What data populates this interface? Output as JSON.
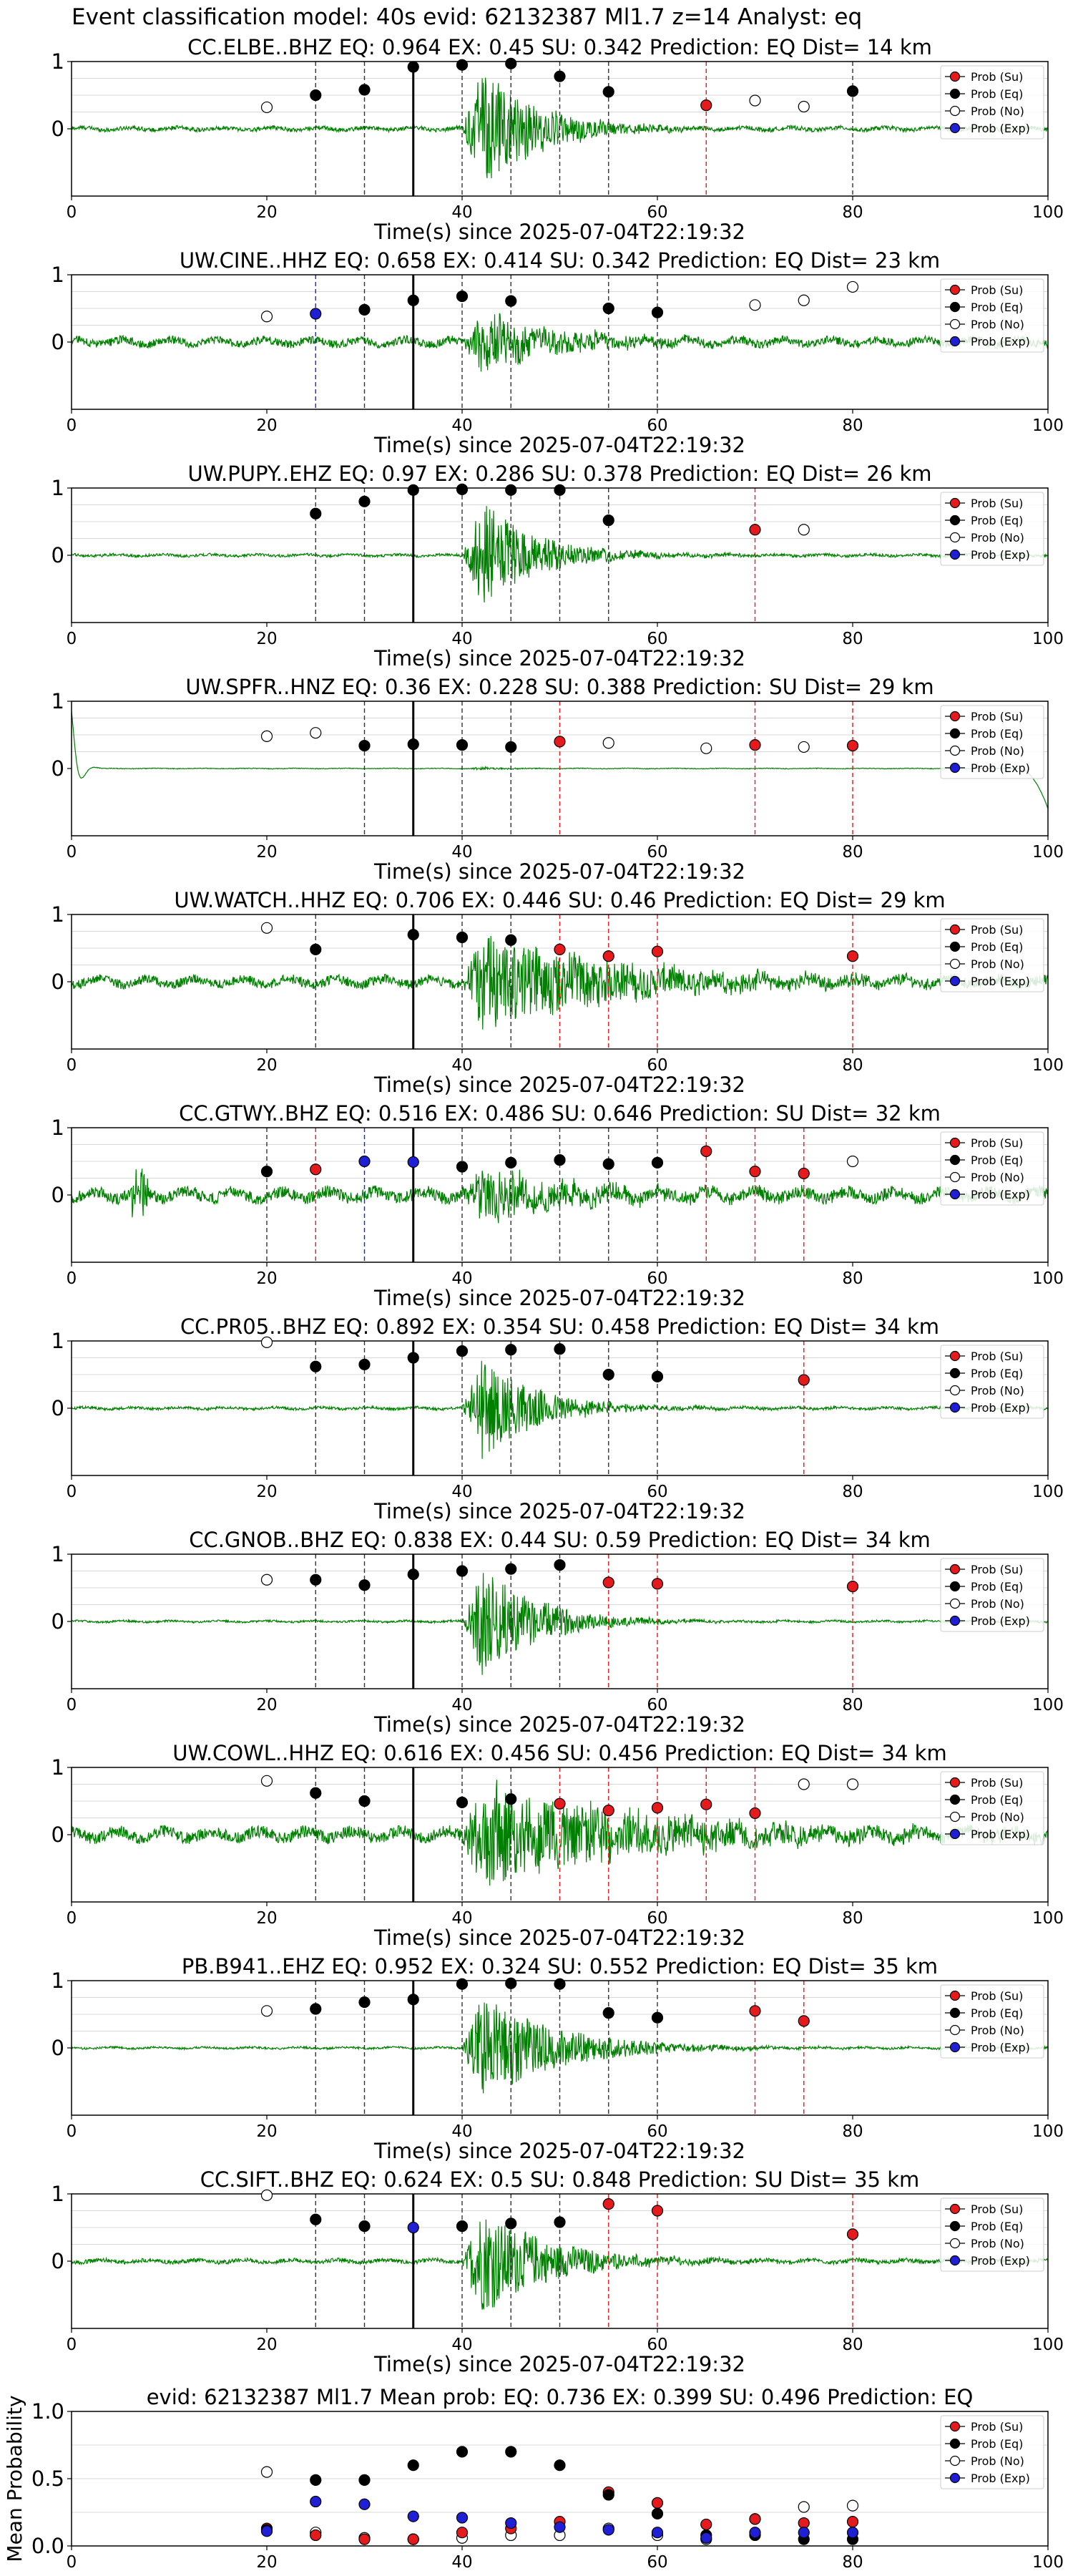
{
  "figure": {
    "suptitle": "Event classification model: 40s evid: 62132387 Ml1.7 z=14 Analyst: eq",
    "legend": [
      "Prob (Su)",
      "Prob (Eq)",
      "Prob (No)",
      "Prob (Exp)"
    ],
    "xlabel": "Time(s) since 2025-07-04T22:19:32",
    "colors": {
      "su": "#e41a1c",
      "eq": "#000000",
      "no": "#ffffff",
      "exp": "#1f1fd6",
      "wave": "#008000"
    }
  },
  "chart_data": [
    {
      "type": "scatter",
      "title": "CC.ELBE..BHZ   EQ: 0.964  EX: 0.45  SU: 0.342   Prediction: EQ    Dist= 14 km",
      "xlim": [
        0,
        100
      ],
      "ylim": [
        -1,
        1
      ],
      "xticks": [
        0,
        20,
        40,
        60,
        80,
        100
      ],
      "yticks": [
        0,
        1
      ],
      "pick": 35,
      "event_start": 40,
      "event_end": 45,
      "noise_amp": 0.03,
      "event_amp": 0.9,
      "coda": 6,
      "series": {
        "su": [
          [
            65,
            0.35
          ]
        ],
        "eq": [
          [
            25,
            0.5
          ],
          [
            30,
            0.58
          ],
          [
            35,
            0.92
          ],
          [
            40,
            0.95
          ],
          [
            45,
            0.97
          ],
          [
            50,
            0.78
          ],
          [
            55,
            0.55
          ],
          [
            80,
            0.56
          ]
        ],
        "no": [
          [
            20,
            0.32
          ],
          [
            70,
            0.42
          ],
          [
            75,
            0.33
          ]
        ],
        "exp": []
      }
    },
    {
      "type": "scatter",
      "title": "UW.CINE..HHZ   EQ: 0.658  EX: 0.414  SU: 0.342   Prediction: EQ    Dist= 23 km",
      "xlim": [
        0,
        100
      ],
      "ylim": [
        -1,
        1
      ],
      "xticks": [
        0,
        20,
        40,
        60,
        80,
        100
      ],
      "yticks": [
        0,
        1
      ],
      "pick": 35,
      "event_start": 40,
      "event_end": 45,
      "noise_amp": 0.06,
      "event_amp": 0.45,
      "coda": 8,
      "series": {
        "su": [],
        "eq": [
          [
            30,
            0.48
          ],
          [
            35,
            0.62
          ],
          [
            40,
            0.68
          ],
          [
            45,
            0.61
          ],
          [
            55,
            0.5
          ],
          [
            60,
            0.44
          ]
        ],
        "no": [
          [
            20,
            0.38
          ],
          [
            70,
            0.55
          ],
          [
            75,
            0.62
          ],
          [
            80,
            0.82
          ]
        ],
        "exp": [
          [
            25,
            0.42
          ]
        ]
      }
    },
    {
      "type": "scatter",
      "title": "UW.PUPY..EHZ   EQ: 0.97  EX: 0.286  SU: 0.378   Prediction: EQ    Dist= 26 km",
      "xlim": [
        0,
        100
      ],
      "ylim": [
        -1,
        1
      ],
      "xticks": [
        0,
        20,
        40,
        60,
        80,
        100
      ],
      "yticks": [
        0,
        1
      ],
      "pick": 35,
      "event_start": 40,
      "event_end": 45,
      "noise_amp": 0.02,
      "event_amp": 0.8,
      "coda": 6,
      "series": {
        "su": [
          [
            70,
            0.38
          ]
        ],
        "eq": [
          [
            25,
            0.62
          ],
          [
            30,
            0.8
          ],
          [
            35,
            0.97
          ],
          [
            40,
            0.98
          ],
          [
            45,
            0.97
          ],
          [
            50,
            0.97
          ],
          [
            55,
            0.52
          ]
        ],
        "no": [
          [
            75,
            0.38
          ]
        ],
        "exp": []
      }
    },
    {
      "type": "scatter",
      "title": "UW.SPFR..HNZ   EQ: 0.36  EX: 0.228  SU: 0.388   Prediction: SU    Dist= 29 km",
      "xlim": [
        0,
        100
      ],
      "ylim": [
        -1,
        1
      ],
      "xticks": [
        0,
        20,
        40,
        60,
        80,
        100
      ],
      "yticks": [
        0,
        1
      ],
      "pick": 35,
      "event_start": 40,
      "event_end": 45,
      "noise_amp": 0.005,
      "event_amp": 0.02,
      "coda": 4,
      "transient": true,
      "series": {
        "su": [
          [
            50,
            0.4
          ],
          [
            70,
            0.35
          ],
          [
            80,
            0.34
          ]
        ],
        "eq": [
          [
            30,
            0.34
          ],
          [
            35,
            0.36
          ],
          [
            40,
            0.35
          ],
          [
            45,
            0.32
          ]
        ],
        "no": [
          [
            20,
            0.48
          ],
          [
            25,
            0.53
          ],
          [
            55,
            0.38
          ],
          [
            65,
            0.3
          ],
          [
            75,
            0.32
          ]
        ],
        "exp": []
      }
    },
    {
      "type": "scatter",
      "title": "UW.WATCH..HHZ   EQ: 0.706  EX: 0.446  SU: 0.46   Prediction: EQ    Dist= 29 km",
      "xlim": [
        0,
        100
      ],
      "ylim": [
        -1,
        1
      ],
      "xticks": [
        0,
        20,
        40,
        60,
        80,
        100
      ],
      "yticks": [
        0,
        1
      ],
      "pick": 35,
      "event_start": 40,
      "event_end": 45,
      "noise_amp": 0.07,
      "event_amp": 0.75,
      "coda": 14,
      "series": {
        "su": [
          [
            50,
            0.48
          ],
          [
            55,
            0.38
          ],
          [
            60,
            0.45
          ],
          [
            80,
            0.38
          ]
        ],
        "eq": [
          [
            25,
            0.48
          ],
          [
            35,
            0.7
          ],
          [
            40,
            0.66
          ],
          [
            45,
            0.62
          ]
        ],
        "no": [
          [
            20,
            0.8
          ]
        ],
        "exp": []
      }
    },
    {
      "type": "scatter",
      "title": "CC.GTWY..BHZ   EQ: 0.516  EX: 0.486  SU: 0.646   Prediction: SU    Dist= 32 km",
      "xlim": [
        0,
        100
      ],
      "ylim": [
        -1,
        1
      ],
      "xticks": [
        0,
        20,
        40,
        60,
        80,
        100
      ],
      "yticks": [
        0,
        1
      ],
      "pick": 35,
      "event_start": 40,
      "event_end": 45,
      "noise_amp": 0.09,
      "event_amp": 0.4,
      "coda": 10,
      "burst": 7,
      "series": {
        "su": [
          [
            25,
            0.38
          ],
          [
            65,
            0.65
          ],
          [
            70,
            0.35
          ],
          [
            75,
            0.32
          ]
        ],
        "eq": [
          [
            20,
            0.35
          ],
          [
            40,
            0.42
          ],
          [
            45,
            0.48
          ],
          [
            50,
            0.52
          ],
          [
            55,
            0.46
          ],
          [
            60,
            0.48
          ]
        ],
        "no": [
          [
            80,
            0.5
          ]
        ],
        "exp": [
          [
            30,
            0.5
          ],
          [
            35,
            0.49
          ]
        ]
      }
    },
    {
      "type": "scatter",
      "title": "CC.PR05..BHZ   EQ: 0.892  EX: 0.354  SU: 0.458   Prediction: EQ    Dist= 34 km",
      "xlim": [
        0,
        100
      ],
      "ylim": [
        -1,
        1
      ],
      "xticks": [
        0,
        20,
        40,
        60,
        80,
        100
      ],
      "yticks": [
        0,
        1
      ],
      "pick": 35,
      "event_start": 40,
      "event_end": 45,
      "noise_amp": 0.02,
      "event_amp": 0.75,
      "coda": 6,
      "series": {
        "su": [
          [
            75,
            0.42
          ]
        ],
        "eq": [
          [
            25,
            0.62
          ],
          [
            30,
            0.65
          ],
          [
            35,
            0.75
          ],
          [
            40,
            0.85
          ],
          [
            45,
            0.87
          ],
          [
            50,
            0.88
          ],
          [
            55,
            0.5
          ],
          [
            60,
            0.47
          ]
        ],
        "no": [
          [
            20,
            0.98
          ]
        ],
        "exp": []
      }
    },
    {
      "type": "scatter",
      "title": "CC.GNOB..BHZ   EQ: 0.838  EX: 0.44  SU: 0.59   Prediction: EQ    Dist= 34 km",
      "xlim": [
        0,
        100
      ],
      "ylim": [
        -1,
        1
      ],
      "xticks": [
        0,
        20,
        40,
        60,
        80,
        100
      ],
      "yticks": [
        0,
        1
      ],
      "pick": 35,
      "event_start": 40,
      "event_end": 45,
      "noise_amp": 0.015,
      "event_amp": 0.8,
      "coda": 6,
      "series": {
        "su": [
          [
            55,
            0.58
          ],
          [
            60,
            0.56
          ],
          [
            80,
            0.52
          ]
        ],
        "eq": [
          [
            25,
            0.62
          ],
          [
            30,
            0.54
          ],
          [
            35,
            0.7
          ],
          [
            40,
            0.75
          ],
          [
            45,
            0.78
          ],
          [
            50,
            0.84
          ]
        ],
        "no": [
          [
            20,
            0.62
          ]
        ],
        "exp": []
      }
    },
    {
      "type": "scatter",
      "title": "UW.COWL..HHZ   EQ: 0.616  EX: 0.456  SU: 0.456   Prediction: EQ    Dist= 34 km",
      "xlim": [
        0,
        100
      ],
      "ylim": [
        -1,
        1
      ],
      "xticks": [
        0,
        20,
        40,
        60,
        80,
        100
      ],
      "yticks": [
        0,
        1
      ],
      "pick": 35,
      "event_start": 40,
      "event_end": 45,
      "noise_amp": 0.09,
      "event_amp": 0.8,
      "coda": 16,
      "series": {
        "su": [
          [
            50,
            0.46
          ],
          [
            55,
            0.36
          ],
          [
            60,
            0.4
          ],
          [
            65,
            0.45
          ],
          [
            70,
            0.32
          ]
        ],
        "eq": [
          [
            25,
            0.62
          ],
          [
            30,
            0.5
          ],
          [
            40,
            0.48
          ],
          [
            45,
            0.53
          ]
        ],
        "no": [
          [
            20,
            0.8
          ],
          [
            75,
            0.75
          ],
          [
            80,
            0.75
          ]
        ],
        "exp": []
      }
    },
    {
      "type": "scatter",
      "title": "PB.B941..EHZ   EQ: 0.952  EX: 0.324  SU: 0.552   Prediction: EQ    Dist= 35 km",
      "xlim": [
        0,
        100
      ],
      "ylim": [
        -1,
        1
      ],
      "xticks": [
        0,
        20,
        40,
        60,
        80,
        100
      ],
      "yticks": [
        0,
        1
      ],
      "pick": 35,
      "event_start": 40,
      "event_end": 45,
      "noise_amp": 0.015,
      "event_amp": 0.8,
      "coda": 8,
      "series": {
        "su": [
          [
            70,
            0.55
          ],
          [
            75,
            0.4
          ]
        ],
        "eq": [
          [
            25,
            0.58
          ],
          [
            30,
            0.68
          ],
          [
            35,
            0.72
          ],
          [
            40,
            0.95
          ],
          [
            45,
            0.96
          ],
          [
            50,
            0.95
          ],
          [
            55,
            0.52
          ],
          [
            60,
            0.45
          ]
        ],
        "no": [
          [
            20,
            0.55
          ]
        ],
        "exp": []
      }
    },
    {
      "type": "scatter",
      "title": "CC.SIFT..BHZ   EQ: 0.624  EX: 0.5  SU: 0.848   Prediction: SU    Dist= 35 km",
      "xlim": [
        0,
        100
      ],
      "ylim": [
        -1,
        1
      ],
      "xticks": [
        0,
        20,
        40,
        60,
        80,
        100
      ],
      "yticks": [
        0,
        1
      ],
      "pick": 35,
      "event_start": 40,
      "event_end": 45,
      "noise_amp": 0.03,
      "event_amp": 0.8,
      "coda": 7,
      "series": {
        "su": [
          [
            55,
            0.85
          ],
          [
            60,
            0.75
          ],
          [
            80,
            0.4
          ]
        ],
        "eq": [
          [
            25,
            0.62
          ],
          [
            30,
            0.52
          ],
          [
            40,
            0.52
          ],
          [
            45,
            0.56
          ],
          [
            50,
            0.58
          ]
        ],
        "no": [
          [
            20,
            0.98
          ]
        ],
        "exp": [
          [
            35,
            0.5
          ]
        ]
      }
    },
    {
      "type": "scatter",
      "title": "evid: 62132387  Ml1.7   Mean prob:   EQ: 0.736  EX: 0.399  SU: 0.496   Prediction: EQ",
      "ylabel": "Mean Probability",
      "summary": true,
      "xlim": [
        0,
        100
      ],
      "ylim": [
        0,
        1
      ],
      "xticks": [
        0,
        20,
        40,
        60,
        80,
        100
      ],
      "yticks": [
        0.0,
        0.5,
        1.0
      ],
      "series": {
        "su": [
          [
            20,
            0.13
          ],
          [
            25,
            0.08
          ],
          [
            30,
            0.05
          ],
          [
            35,
            0.05
          ],
          [
            40,
            0.1
          ],
          [
            45,
            0.13
          ],
          [
            50,
            0.18
          ],
          [
            55,
            0.4
          ],
          [
            60,
            0.32
          ],
          [
            65,
            0.16
          ],
          [
            70,
            0.2
          ],
          [
            75,
            0.17
          ],
          [
            80,
            0.18
          ]
        ],
        "eq": [
          [
            20,
            0.12
          ],
          [
            25,
            0.49
          ],
          [
            30,
            0.49
          ],
          [
            35,
            0.6
          ],
          [
            40,
            0.7
          ],
          [
            45,
            0.7
          ],
          [
            50,
            0.6
          ],
          [
            55,
            0.38
          ],
          [
            60,
            0.24
          ],
          [
            65,
            0.08
          ],
          [
            70,
            0.08
          ],
          [
            75,
            0.05
          ],
          [
            80,
            0.05
          ]
        ],
        "no": [
          [
            20,
            0.55
          ],
          [
            25,
            0.1
          ],
          [
            30,
            0.06
          ],
          [
            35,
            0.05
          ],
          [
            40,
            0.06
          ],
          [
            45,
            0.08
          ],
          [
            50,
            0.08
          ],
          [
            55,
            0.13
          ],
          [
            60,
            0.08
          ],
          [
            65,
            0.05
          ],
          [
            70,
            0.2
          ],
          [
            75,
            0.29
          ],
          [
            80,
            0.3
          ]
        ],
        "exp": [
          [
            20,
            0.11
          ],
          [
            25,
            0.33
          ],
          [
            30,
            0.31
          ],
          [
            35,
            0.22
          ],
          [
            40,
            0.21
          ],
          [
            45,
            0.17
          ],
          [
            50,
            0.14
          ],
          [
            55,
            0.12
          ],
          [
            60,
            0.1
          ],
          [
            65,
            0.06
          ],
          [
            70,
            0.1
          ],
          [
            75,
            0.1
          ],
          [
            80,
            0.1
          ]
        ]
      }
    }
  ]
}
